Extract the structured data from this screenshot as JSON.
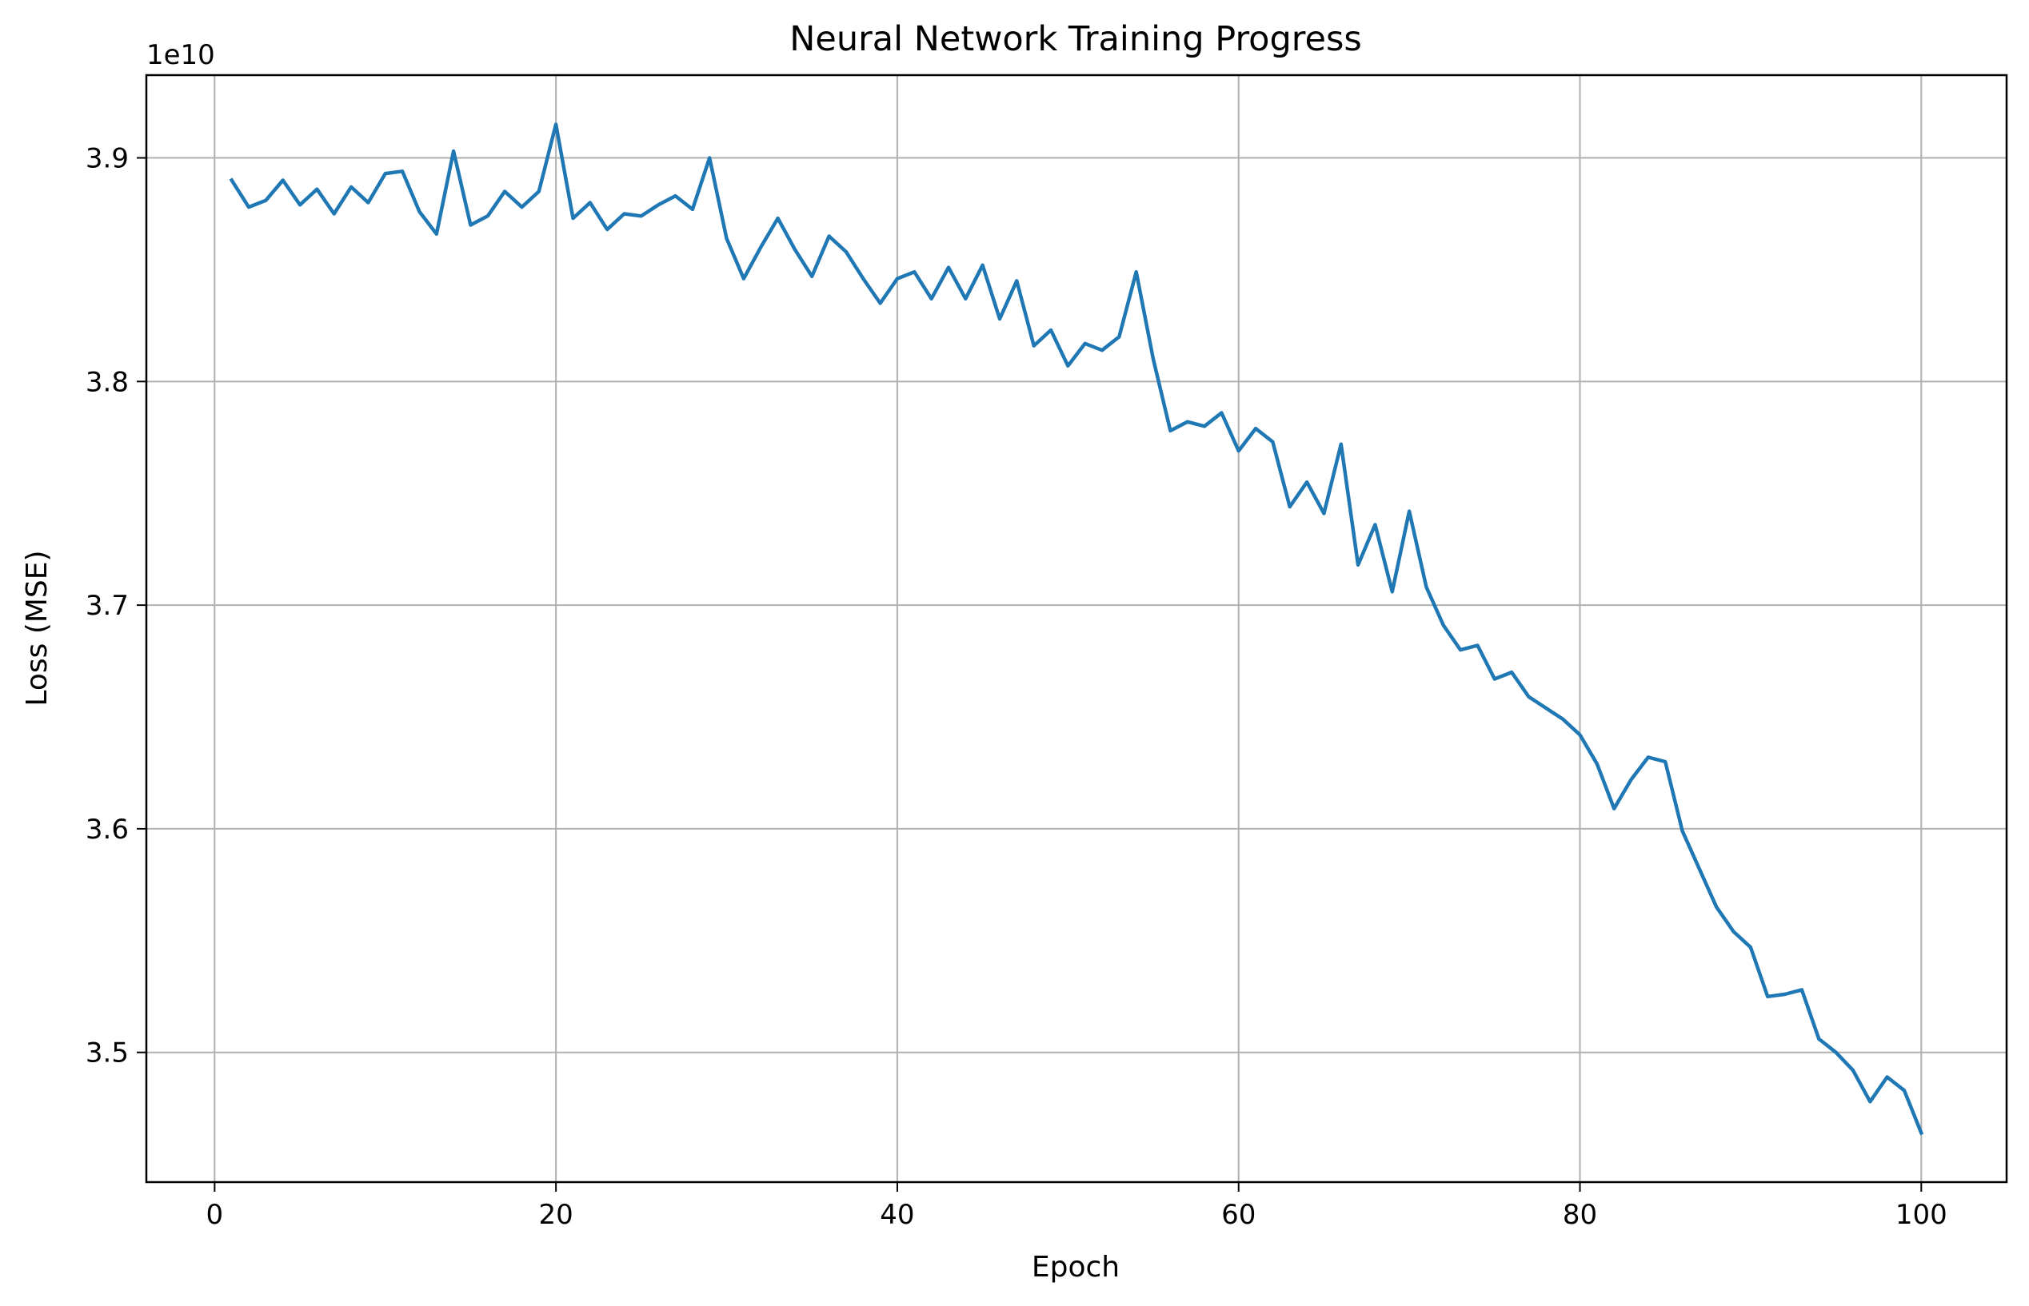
{
  "chart_data": {
    "type": "line",
    "title": "Neural Network Training Progress",
    "xlabel": "Epoch",
    "ylabel": "Loss (MSE)",
    "y_offset_label": "1e10",
    "xlim": [
      -4,
      105
    ],
    "ylim": [
      3.442,
      3.937
    ],
    "x_ticks": [
      0,
      20,
      40,
      60,
      80,
      100
    ],
    "x_tick_labels": [
      "0",
      "20",
      "40",
      "60",
      "80",
      "100"
    ],
    "y_ticks": [
      3.5,
      3.6,
      3.7,
      3.8,
      3.9
    ],
    "y_tick_labels": [
      "3.5",
      "3.6",
      "3.7",
      "3.8",
      "3.9"
    ],
    "grid": true,
    "colors": {
      "line": "#1f77b4",
      "grid": "#b0b0b0"
    },
    "series": [
      {
        "x": [
          1,
          2,
          3,
          4,
          5,
          6,
          7,
          8,
          9,
          10,
          11,
          12,
          13,
          14,
          15,
          16,
          17,
          18,
          19,
          20,
          21,
          22,
          23,
          24,
          25,
          26,
          27,
          28,
          29,
          30,
          31,
          32,
          33,
          34,
          35,
          36,
          37,
          38,
          39,
          40,
          41,
          42,
          43,
          44,
          45,
          46,
          47,
          48,
          49,
          50,
          51,
          52,
          53,
          54,
          55,
          56,
          57,
          58,
          59,
          60,
          61,
          62,
          63,
          64,
          65,
          66,
          67,
          68,
          69,
          70,
          71,
          72,
          73,
          74,
          75,
          76,
          77,
          78,
          79,
          80,
          81,
          82,
          83,
          84,
          85,
          86,
          87,
          88,
          89,
          90,
          91,
          92,
          93,
          94,
          95,
          96,
          97,
          98,
          99,
          100
        ],
        "values": [
          3.89,
          3.878,
          3.881,
          3.89,
          3.879,
          3.886,
          3.875,
          3.887,
          3.88,
          3.893,
          3.894,
          3.876,
          3.866,
          3.903,
          3.87,
          3.874,
          3.885,
          3.878,
          3.885,
          3.915,
          3.873,
          3.88,
          3.868,
          3.875,
          3.874,
          3.879,
          3.883,
          3.877,
          3.9,
          3.864,
          3.846,
          3.86,
          3.873,
          3.859,
          3.847,
          3.865,
          3.858,
          3.846,
          3.835,
          3.846,
          3.849,
          3.837,
          3.851,
          3.837,
          3.852,
          3.828,
          3.845,
          3.816,
          3.823,
          3.807,
          3.817,
          3.814,
          3.82,
          3.849,
          3.81,
          3.778,
          3.782,
          3.78,
          3.786,
          3.769,
          3.779,
          3.773,
          3.744,
          3.755,
          3.741,
          3.772,
          3.718,
          3.736,
          3.706,
          3.742,
          3.708,
          3.691,
          3.68,
          3.682,
          3.667,
          3.67,
          3.659,
          3.654,
          3.649,
          3.642,
          3.629,
          3.609,
          3.622,
          3.632,
          3.63,
          3.599,
          3.582,
          3.565,
          3.554,
          3.547,
          3.525,
          3.526,
          3.528,
          3.506,
          3.5,
          3.492,
          3.478,
          3.489,
          3.483,
          3.464
        ]
      }
    ]
  }
}
